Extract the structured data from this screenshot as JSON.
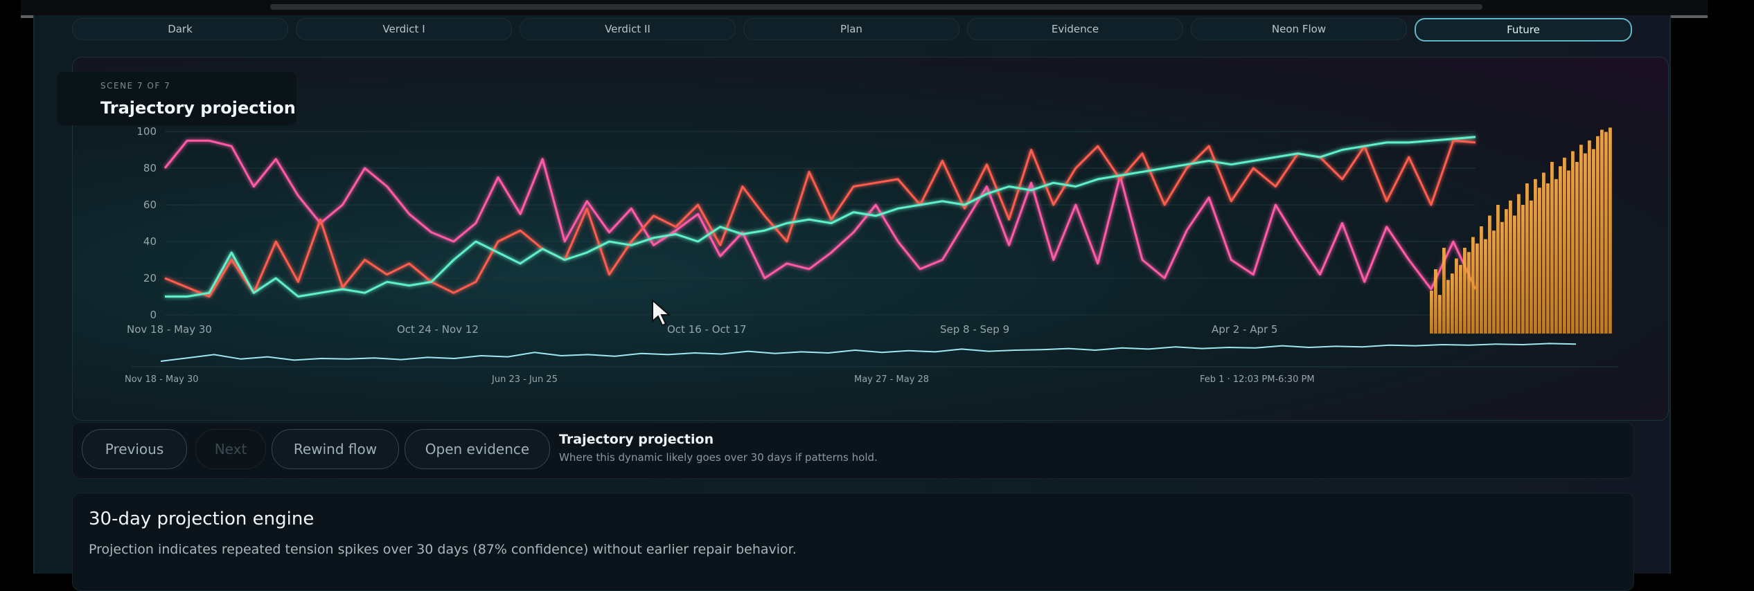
{
  "tabs": [
    "Dark",
    "Verdict I",
    "Verdict II",
    "Plan",
    "Evidence",
    "Neon Flow",
    "Future"
  ],
  "active_tab": "Future",
  "scene": {
    "label": "SCENE 7 OF 7",
    "title": "Trajectory projection"
  },
  "chart_data": [
    {
      "type": "line",
      "title": "",
      "ylim": [
        0,
        100
      ],
      "y_ticks": [
        "0",
        "20",
        "40",
        "60",
        "80",
        "100"
      ],
      "x_tick_labels": [
        "Nov 18 - May 30",
        "Oct 24 - Nov 12",
        "Oct 16 - Oct 17",
        "Sep 8 - Sep 9",
        "Apr 2 - Apr 5"
      ],
      "series": [
        {
          "name": "",
          "color": "#ff5aa8",
          "values": [
            80,
            95,
            95,
            92,
            70,
            85,
            65,
            50,
            60,
            80,
            70,
            55,
            45,
            40,
            50,
            75,
            55,
            85,
            40,
            62,
            45,
            58,
            38,
            46,
            55,
            32,
            45,
            20,
            28,
            25,
            34,
            45,
            60,
            40,
            25,
            30,
            50,
            70,
            38,
            72,
            30,
            60,
            28,
            76,
            30,
            20,
            46,
            64,
            30,
            22,
            60,
            40,
            22,
            50,
            18,
            48,
            30,
            14,
            40,
            14
          ]
        },
        {
          "name": "",
          "color": "#ff5b4d",
          "values": [
            20,
            15,
            10,
            30,
            12,
            40,
            18,
            52,
            15,
            30,
            22,
            28,
            18,
            12,
            18,
            40,
            46,
            36,
            30,
            58,
            22,
            40,
            54,
            48,
            60,
            38,
            70,
            54,
            40,
            78,
            52,
            70,
            72,
            74,
            60,
            84,
            58,
            82,
            52,
            90,
            60,
            80,
            92,
            74,
            88,
            60,
            80,
            92,
            62,
            80,
            70,
            88,
            86,
            74,
            92,
            62,
            86,
            60,
            95,
            94
          ]
        },
        {
          "name": "",
          "color": "#5ff0c8",
          "values": [
            10,
            10,
            12,
            34,
            12,
            20,
            10,
            12,
            14,
            12,
            18,
            16,
            18,
            30,
            40,
            34,
            28,
            36,
            30,
            34,
            40,
            38,
            42,
            44,
            40,
            48,
            44,
            46,
            50,
            52,
            50,
            56,
            54,
            58,
            60,
            62,
            60,
            66,
            70,
            68,
            72,
            70,
            74,
            76,
            78,
            80,
            82,
            84,
            82,
            84,
            86,
            88,
            86,
            90,
            92,
            94,
            94,
            95,
            96,
            97
          ]
        }
      ]
    },
    {
      "type": "bar",
      "title": "",
      "ylim": [
        0,
        100
      ],
      "values": [
        20,
        30,
        18,
        40,
        25,
        28,
        35,
        32,
        40,
        38,
        45,
        42,
        50,
        44,
        55,
        48,
        60,
        52,
        58,
        62,
        55,
        65,
        60,
        70,
        62,
        72,
        68,
        75,
        70,
        80,
        72,
        78,
        82,
        76,
        85,
        80,
        88,
        84,
        90,
        86,
        92,
        95,
        94,
        96
      ]
    },
    {
      "type": "line",
      "title": "",
      "x_tick_labels": [
        "Nov 18 - May 30",
        "Jun 23 - Jun 25",
        "May 27 - May 28",
        "Feb 1 · 12:03 PM-6:30 PM"
      ],
      "series": [
        {
          "name": "",
          "color": "#9fe8f0",
          "values": [
            10,
            16,
            22,
            14,
            18,
            12,
            15,
            14,
            16,
            13,
            17,
            15,
            20,
            18,
            26,
            20,
            22,
            19,
            24,
            22,
            25,
            23,
            28,
            24,
            27,
            25,
            30,
            26,
            29,
            27,
            32,
            28,
            30,
            31,
            33,
            30,
            34,
            32,
            36,
            33,
            35,
            34,
            38,
            35,
            37,
            36,
            39,
            38,
            40,
            39,
            41,
            40,
            42,
            41
          ]
        }
      ]
    }
  ],
  "controls": {
    "previous": "Previous",
    "next": "Next",
    "rewind": "Rewind flow",
    "open_evidence": "Open evidence",
    "title": "Trajectory projection",
    "subtitle": "Where this dynamic likely goes over 30 days if patterns hold."
  },
  "engine": {
    "title": "30-day projection engine",
    "text": "Projection indicates repeated tension spikes over 30 days (87% confidence) without earlier repair behavior."
  }
}
